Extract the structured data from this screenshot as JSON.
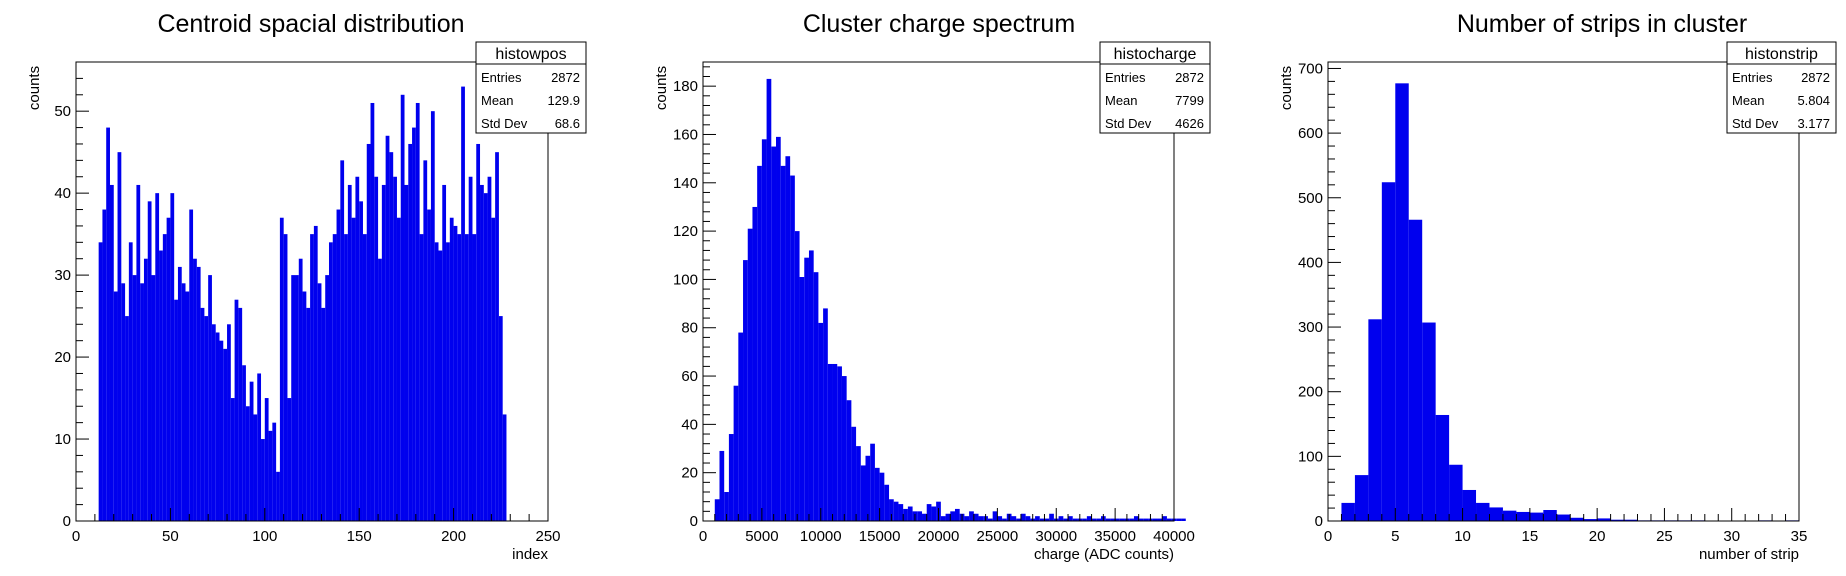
{
  "chart_data": [
    {
      "type": "histogram",
      "title": "Centroid spacial distribution",
      "xlabel": "index",
      "ylabel": "counts",
      "xlim": [
        0,
        250
      ],
      "ylim": [
        0,
        56
      ],
      "xticks": [
        "0",
        "50",
        "100",
        "150",
        "200",
        "250"
      ],
      "yticks": [
        "0",
        "10",
        "20",
        "30",
        "40",
        "50"
      ],
      "bin_start": 12,
      "bin_width": 2,
      "values": [
        34,
        38,
        48,
        41,
        28,
        45,
        29,
        25,
        34,
        30,
        41,
        29,
        32,
        39,
        30,
        40,
        33,
        35,
        37,
        40,
        27,
        31,
        29,
        28,
        38,
        32,
        31,
        26,
        25,
        30,
        24,
        23,
        22,
        21,
        24,
        15,
        27,
        26,
        19,
        14,
        17,
        13,
        18,
        10,
        15,
        11,
        12,
        6,
        37,
        35,
        15,
        30,
        30,
        32,
        28,
        26,
        35,
        36,
        29,
        26,
        30,
        34,
        35,
        38,
        44,
        35,
        41,
        37,
        42,
        39,
        35,
        46,
        51,
        42,
        32,
        41,
        47,
        45,
        42,
        37,
        52,
        41,
        46,
        48,
        51,
        35,
        44,
        38,
        50,
        34,
        33,
        41,
        34,
        37,
        36,
        35,
        53,
        35,
        42,
        35,
        46,
        41,
        40,
        42,
        37,
        45,
        25,
        13
      ]
    },
    {
      "type": "histogram",
      "title": "Cluster charge spectrum",
      "xlabel": "charge (ADC counts)",
      "ylabel": "counts",
      "xlim": [
        0,
        40000
      ],
      "ylim": [
        0,
        190
      ],
      "xticks": [
        "0",
        "5000",
        "10000",
        "15000",
        "20000",
        "25000",
        "30000",
        "35000",
        "40000"
      ],
      "yticks": [
        "0",
        "20",
        "40",
        "60",
        "80",
        "100",
        "120",
        "140",
        "160",
        "180"
      ],
      "bin_start": 1000,
      "bin_width": 400,
      "values": [
        9,
        29,
        12,
        36,
        56,
        78,
        108,
        121,
        130,
        147,
        158,
        183,
        155,
        159,
        147,
        151,
        143,
        120,
        101,
        109,
        112,
        103,
        82,
        88,
        65,
        65,
        64,
        60,
        50,
        39,
        31,
        23,
        27,
        32,
        22,
        20,
        15,
        9,
        8,
        7,
        5,
        6,
        4,
        4,
        3,
        7,
        6,
        8,
        2,
        3,
        4,
        5,
        3,
        2,
        4,
        3,
        2,
        2,
        1,
        4,
        2,
        1,
        3,
        2,
        1,
        3,
        2,
        1,
        2,
        1,
        1,
        3,
        1,
        2,
        1,
        2,
        1,
        1,
        1,
        2,
        1,
        1,
        2,
        1,
        1,
        1,
        1,
        1,
        1,
        2,
        1,
        1,
        1,
        1,
        1,
        2,
        1,
        1,
        1,
        1
      ]
    },
    {
      "type": "histogram",
      "title": "Number of strips in cluster",
      "xlabel": "number of strip",
      "ylabel": "counts",
      "xlim": [
        0,
        35
      ],
      "ylim": [
        0,
        710
      ],
      "xticks": [
        "0",
        "5",
        "10",
        "15",
        "20",
        "25",
        "30",
        "35"
      ],
      "yticks": [
        "0",
        "100",
        "200",
        "300",
        "400",
        "500",
        "600",
        "700"
      ],
      "bin_start": 1,
      "bin_width": 1,
      "values": [
        28,
        71,
        312,
        524,
        677,
        466,
        307,
        164,
        87,
        48,
        28,
        21,
        16,
        14,
        13,
        17,
        10,
        5,
        3,
        4,
        2,
        2,
        1,
        1,
        1,
        1,
        1,
        0,
        0,
        0,
        0,
        1,
        0,
        1
      ]
    }
  ],
  "stats_boxes": [
    {
      "name": "histowpos",
      "rows": [
        {
          "label": "Entries",
          "value": "2872"
        },
        {
          "label": "Mean",
          "value": "129.9"
        },
        {
          "label": "Std Dev",
          "value": "68.6"
        }
      ]
    },
    {
      "name": "histocharge",
      "rows": [
        {
          "label": "Entries",
          "value": "2872"
        },
        {
          "label": "Mean",
          "value": "7799"
        },
        {
          "label": "Std Dev",
          "value": "4626"
        }
      ]
    },
    {
      "name": "histonstrip",
      "rows": [
        {
          "label": "Entries",
          "value": "2872"
        },
        {
          "label": "Mean",
          "value": "5.804"
        },
        {
          "label": "Std Dev",
          "value": "3.177"
        }
      ]
    }
  ],
  "colors": {
    "fill": "#0000ee",
    "frame": "#000000",
    "background": "#ffffff"
  }
}
